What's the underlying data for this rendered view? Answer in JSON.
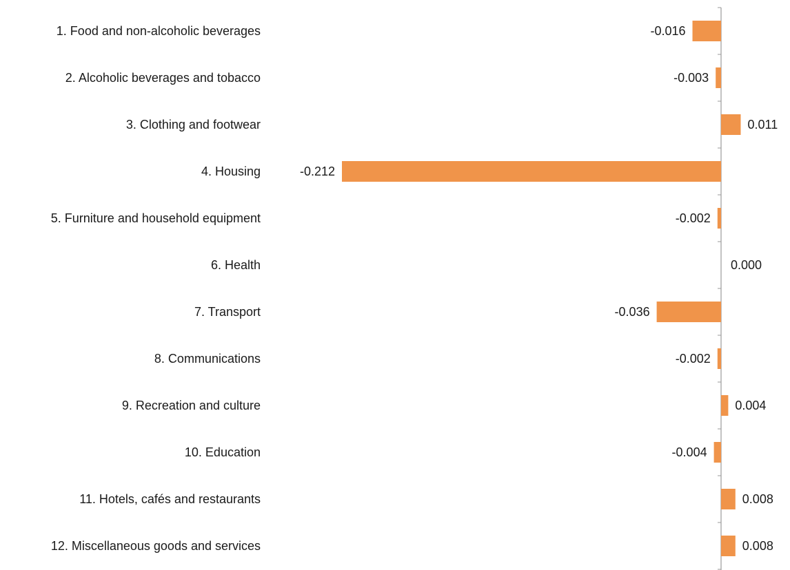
{
  "chart_data": {
    "type": "bar",
    "orientation": "horizontal",
    "title": "",
    "xlabel": "",
    "ylabel": "",
    "grid": false,
    "legend": "none",
    "bar_color": "#f0944a",
    "axis_color": "#9a9a9a",
    "xlim": [
      -0.212,
      0.011
    ],
    "categories": [
      "1. Food and non-alcoholic beverages",
      "2. Alcoholic beverages and tobacco",
      "3. Clothing and footwear",
      "4. Housing",
      "5. Furniture and household equipment",
      "6. Health",
      "7. Transport",
      "8. Communications",
      "9. Recreation and culture",
      "10. Education",
      "11. Hotels, cafés and restaurants",
      "12. Miscellaneous goods and services"
    ],
    "values": [
      -0.016,
      -0.003,
      0.011,
      -0.212,
      -0.002,
      0.0,
      -0.036,
      -0.002,
      0.004,
      -0.004,
      0.008,
      0.008
    ],
    "value_labels": [
      "-0.016",
      "-0.003",
      "0.011",
      "-0.212",
      "-0.002",
      "0.000",
      "-0.036",
      "-0.002",
      "0.004",
      "-0.004",
      "0.008",
      "0.008"
    ]
  }
}
